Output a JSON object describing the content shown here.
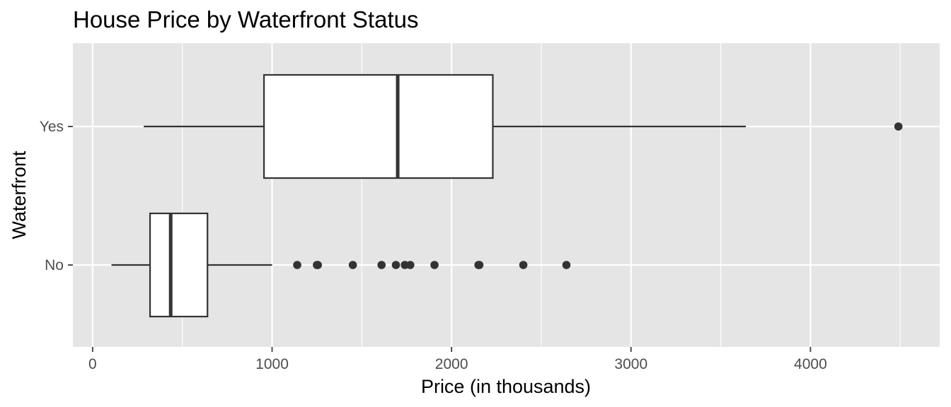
{
  "chart_data": {
    "type": "boxplot",
    "orientation": "horizontal",
    "title": "House Price by Waterfront Status",
    "xlabel": "Price (in thousands)",
    "ylabel": "Waterfront",
    "xlim": [
      -110,
      4720
    ],
    "x_ticks": [
      0,
      1000,
      2000,
      3000,
      4000
    ],
    "x_tick_labels": [
      "0",
      "1000",
      "2000",
      "3000",
      "4000"
    ],
    "x_minor_ticks": [
      500,
      1500,
      2500,
      3500,
      4500
    ],
    "categories": [
      "No",
      "Yes"
    ],
    "grid": true,
    "legend": "none",
    "colors": {
      "panel": "#e5e5e5",
      "grid": "#ffffff",
      "box_fill": "#ffffff",
      "box_line": "#333333",
      "tick": "#4d4d4d"
    },
    "boxes": [
      {
        "category": "No",
        "whisker_low": 105,
        "q1": 320,
        "median": 435,
        "q3": 640,
        "whisker_high": 1000,
        "outliers": [
          1140,
          1250,
          1255,
          1450,
          1610,
          1690,
          1740,
          1770,
          1905,
          2150,
          2155,
          2400,
          2640
        ]
      },
      {
        "category": "Yes",
        "whisker_low": 285,
        "q1": 955,
        "median": 1700,
        "q3": 2230,
        "whisker_high": 3640,
        "outliers": [
          4490
        ]
      }
    ]
  }
}
